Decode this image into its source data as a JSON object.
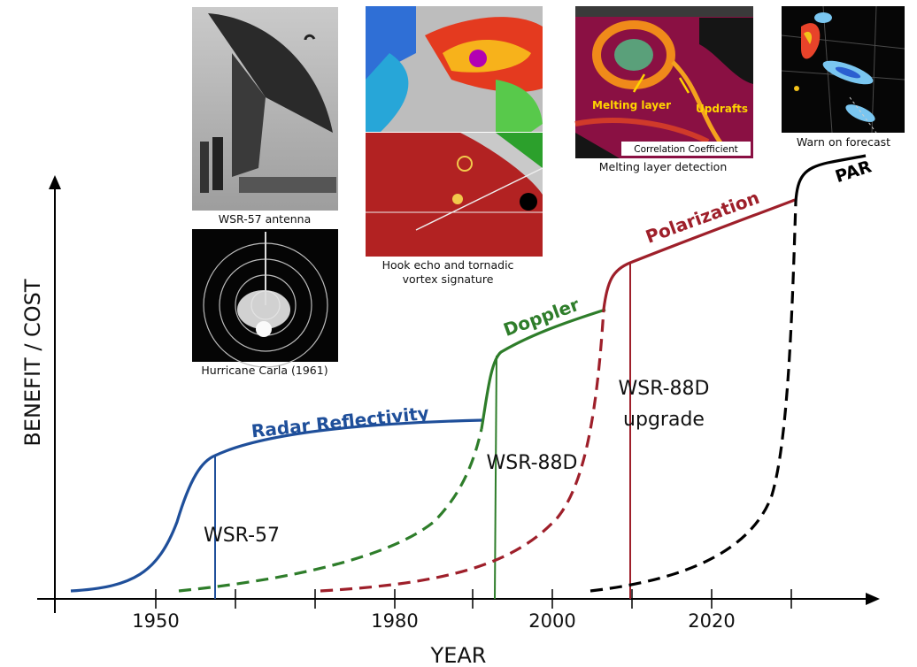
{
  "axes": {
    "y_label": "BENEFIT / COST",
    "x_label": "YEAR",
    "x_ticks": [
      "1950",
      "1980",
      "2000",
      "2020"
    ]
  },
  "curves": {
    "radar_reflectivity": {
      "label": "Radar Reflectivity",
      "color": "#1f4f9a"
    },
    "doppler": {
      "label": "Doppler",
      "color": "#2e7d2a"
    },
    "polarization": {
      "label": "Polarization",
      "color": "#9e1f2a"
    },
    "par": {
      "label": "PAR",
      "color": "#000000"
    }
  },
  "milestones": {
    "wsr57": "WSR-57",
    "wsr88d": "WSR-88D",
    "wsr88d_upgrade_line1": "WSR-88D",
    "wsr88d_upgrade_line2": "upgrade"
  },
  "photos": {
    "antenna_caption": "WSR-57 antenna",
    "carla_caption": "Hurricane Carla (1961)",
    "hook_caption_line1": "Hook echo and tornadic",
    "hook_caption_line2": "vortex signature",
    "melting_caption": "Melting layer detection",
    "melting_label_melting": "Melting layer",
    "melting_label_updrafts": "Updrafts",
    "melting_banner": "Correlation Coefficient",
    "warn_caption": "Warn on forecast"
  }
}
